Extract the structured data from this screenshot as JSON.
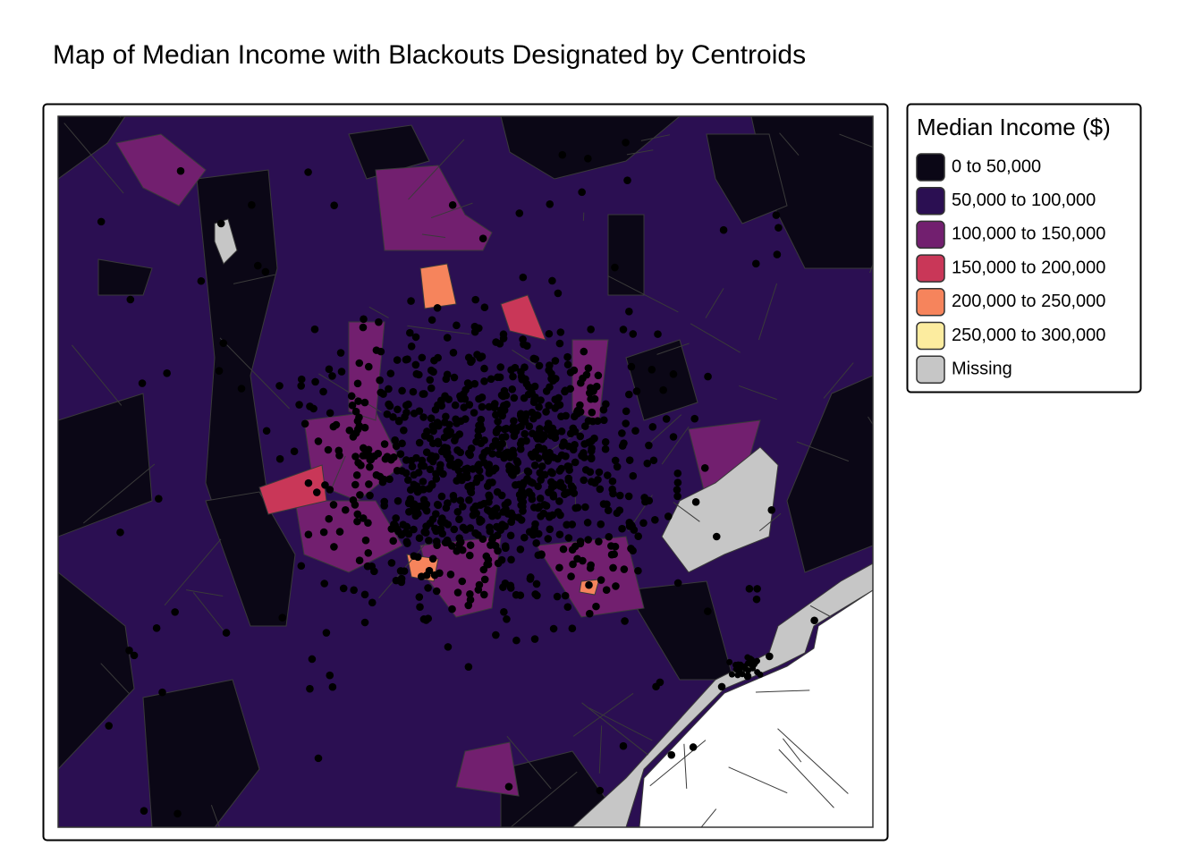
{
  "title": "Map of Median Income with Blackouts Designated by Centroids",
  "legend": {
    "title": "Median Income ($)",
    "items": [
      {
        "label": "0 to 50,000",
        "color": "#0b0716"
      },
      {
        "label": "50,000 to 100,000",
        "color": "#2b0f52"
      },
      {
        "label": "100,000 to 150,000",
        "color": "#721f6f"
      },
      {
        "label": "150,000 to 200,000",
        "color": "#c93758"
      },
      {
        "label": "200,000 to 250,000",
        "color": "#f6845c"
      },
      {
        "label": "250,000 to 300,000",
        "color": "#fcec9f"
      },
      {
        "label": "Missing",
        "color": "#c6c6c6"
      }
    ]
  }
}
